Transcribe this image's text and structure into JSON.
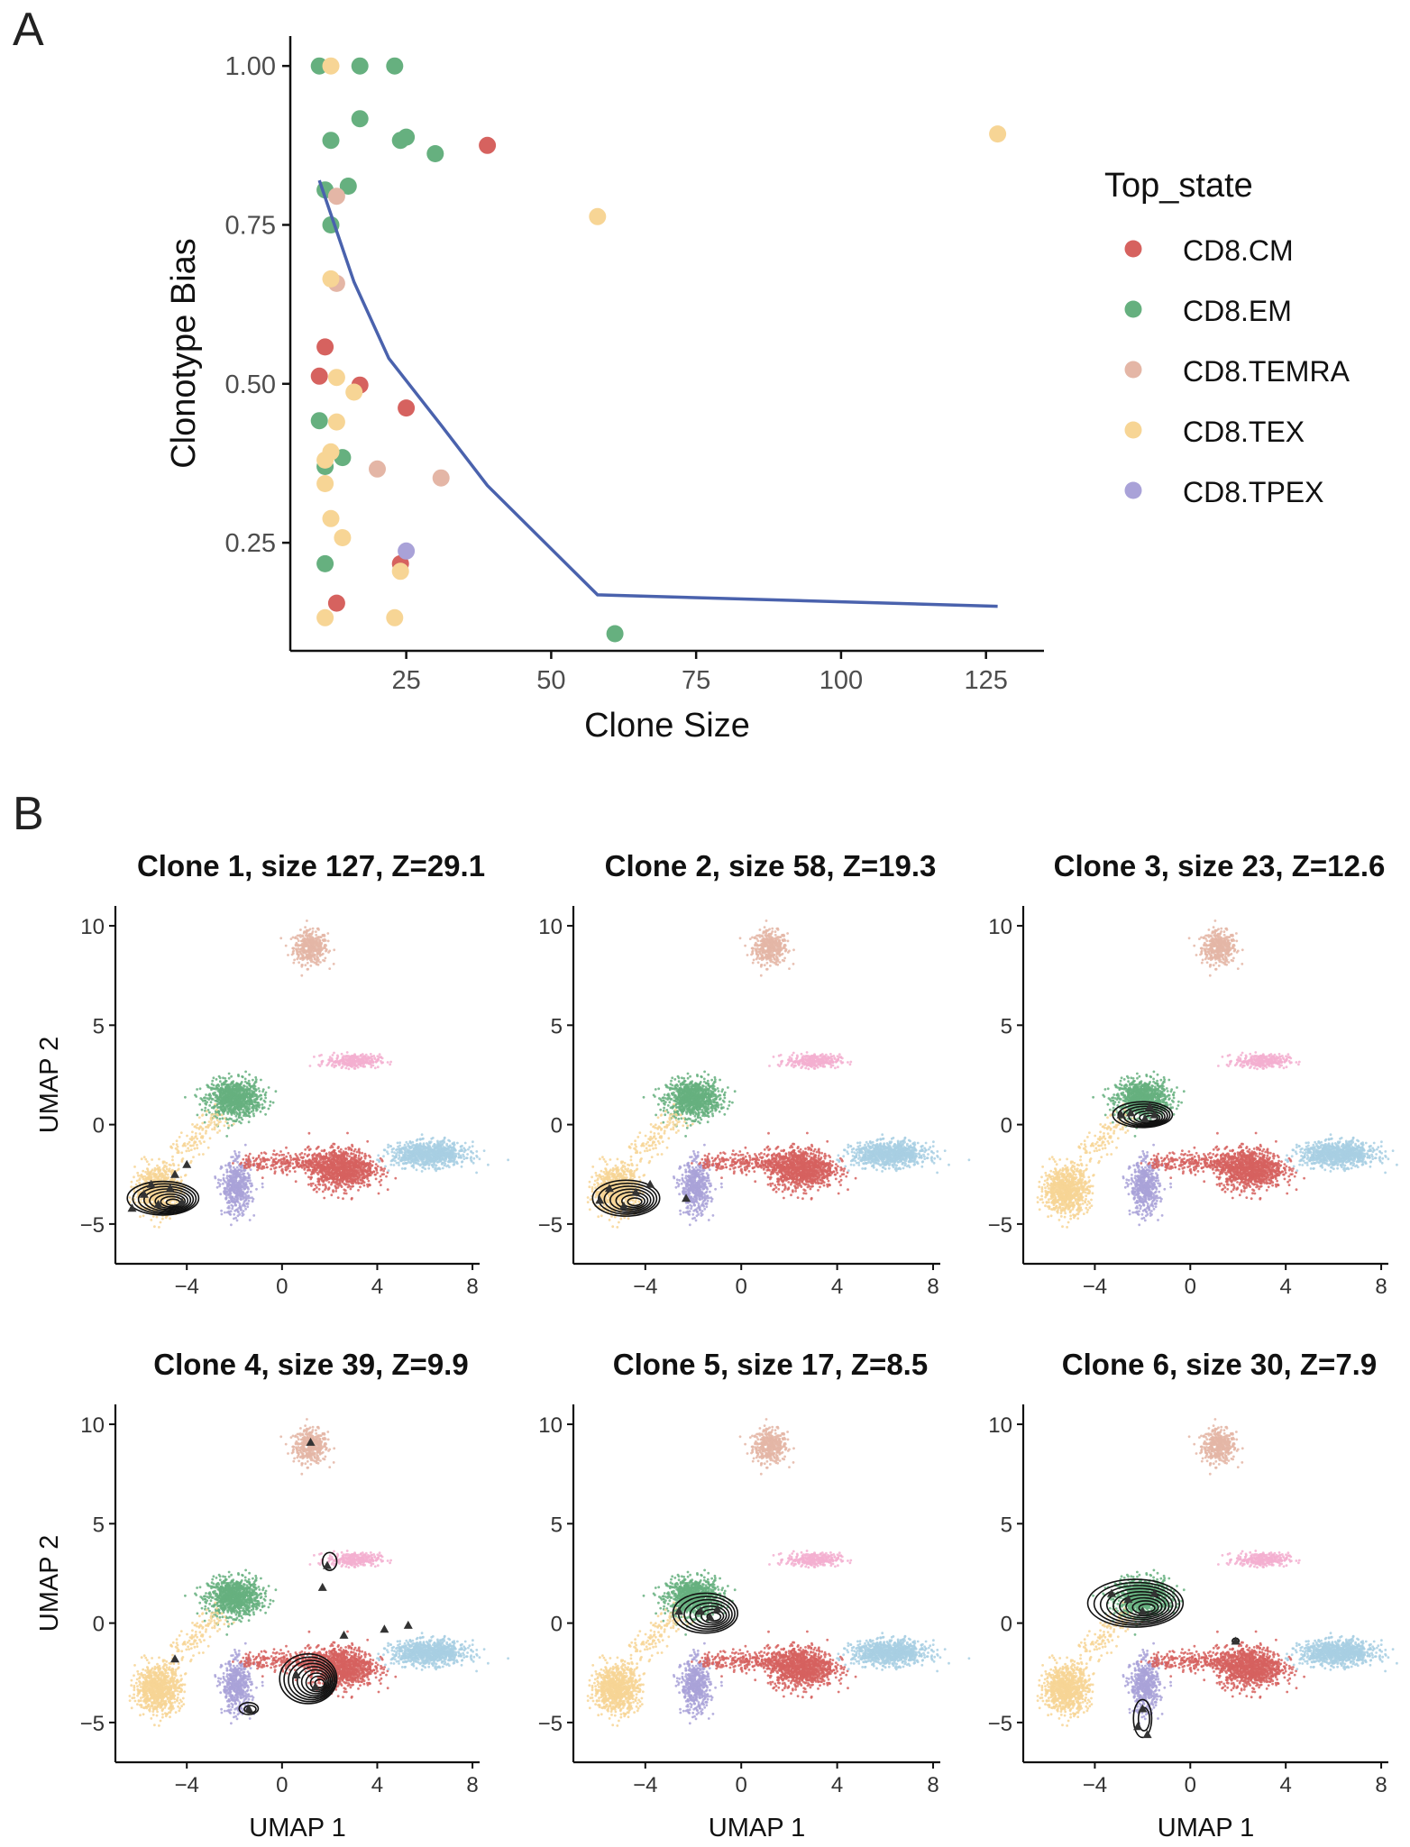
{
  "panel_labels": [
    "A",
    "B"
  ],
  "colors": {
    "CD8.CM": "#d6625f",
    "CD8.EM": "#66b07f",
    "CD8.TEMRA": "#e4b6a6",
    "CD8.TEX": "#f7d595",
    "CD8.TPEX": "#a9a2d8",
    "CD8.TPEX_high": "#f3afd0",
    "CD8.Tnaive": "#a8cfe3",
    "trend": "#4a62ad",
    "contour": "#111111"
  },
  "chart_data": [
    {
      "type": "scatter",
      "xlabel": "Clone Size",
      "ylabel": "Clonotype Bias",
      "xlim": [
        5,
        135
      ],
      "ylim": [
        0.08,
        1.03
      ],
      "xticks": [
        25,
        50,
        75,
        100,
        125
      ],
      "yticks": [
        "0.25",
        "0.50",
        "0.75",
        "1.00"
      ],
      "legend": {
        "title": "Top_state",
        "position": "right",
        "items": [
          "CD8.CM",
          "CD8.EM",
          "CD8.TEMRA",
          "CD8.TEX",
          "CD8.TPEX"
        ]
      },
      "series": [
        {
          "name": "CD8.CM",
          "points": [
            [
              39,
              0.875
            ],
            [
              11,
              0.558
            ],
            [
              10,
              0.512
            ],
            [
              17,
              0.498
            ],
            [
              25,
              0.462
            ],
            [
              24,
              0.217
            ],
            [
              13,
              0.155
            ]
          ]
        },
        {
          "name": "CD8.EM",
          "points": [
            [
              10,
              1.0
            ],
            [
              17,
              1.0
            ],
            [
              23,
              1.0
            ],
            [
              17,
              0.917
            ],
            [
              25,
              0.888
            ],
            [
              24,
              0.883
            ],
            [
              12,
              0.883
            ],
            [
              30,
              0.862
            ],
            [
              15,
              0.811
            ],
            [
              11,
              0.805
            ],
            [
              12,
              0.75
            ],
            [
              10,
              0.442
            ],
            [
              14,
              0.384
            ],
            [
              11,
              0.37
            ],
            [
              11,
              0.217
            ],
            [
              61,
              0.107
            ]
          ]
        },
        {
          "name": "CD8.TEMRA",
          "points": [
            [
              13,
              0.795
            ],
            [
              13,
              0.658
            ],
            [
              20,
              0.366
            ],
            [
              31,
              0.352
            ]
          ]
        },
        {
          "name": "CD8.TEX",
          "points": [
            [
              12,
              1.0
            ],
            [
              127,
              0.893
            ],
            [
              58,
              0.763
            ],
            [
              12,
              0.665
            ],
            [
              13,
              0.51
            ],
            [
              16,
              0.487
            ],
            [
              13,
              0.44
            ],
            [
              12,
              0.393
            ],
            [
              11,
              0.38
            ],
            [
              11,
              0.343
            ],
            [
              12,
              0.288
            ],
            [
              14,
              0.258
            ],
            [
              24,
              0.205
            ],
            [
              11,
              0.132
            ],
            [
              23,
              0.132
            ]
          ]
        },
        {
          "name": "CD8.TPEX",
          "points": [
            [
              25,
              0.237
            ]
          ]
        }
      ],
      "trend_line": {
        "x": [
          10,
          16,
          22,
          31,
          39,
          58,
          127
        ],
        "y": [
          0.82,
          0.66,
          0.54,
          0.435,
          0.34,
          0.168,
          0.15
        ]
      }
    },
    {
      "type": "scatter",
      "subplot_titles": [
        "Clone 1, size 127, Z=29.1",
        "Clone 2, size 58, Z=19.3",
        "Clone 3, size 23, Z=12.6",
        "Clone 4, size 39, Z=9.9",
        "Clone 5, size 17, Z=8.5",
        "Clone 6, size 30, Z=7.9"
      ],
      "xlabel": "UMAP 1",
      "ylabel": "UMAP 2",
      "xlim": [
        -7,
        8.3
      ],
      "ylim": [
        -7,
        11
      ],
      "xticks": [
        "−4",
        "0",
        "4",
        "8"
      ],
      "yticks": [
        "−5",
        "0",
        "5",
        "10"
      ],
      "clusters": [
        {
          "name": "CD8.TEMRA",
          "center": [
            1.2,
            8.9
          ],
          "spread": [
            0.65,
            0.75
          ],
          "n": 420
        },
        {
          "name": "CD8.EM",
          "center": [
            -2.0,
            1.3
          ],
          "spread": [
            1.0,
            0.85
          ],
          "n": 950
        },
        {
          "name": "CD8.TPEX_high",
          "center": [
            3.0,
            3.2
          ],
          "spread": [
            1.0,
            0.3
          ],
          "n": 300
        },
        {
          "name": "CD8.CM",
          "center": [
            2.5,
            -2.2
          ],
          "spread": [
            1.25,
            0.9
          ],
          "n": 1050
        },
        {
          "name": "CD8.Tnaive",
          "center": [
            6.2,
            -1.5
          ],
          "spread": [
            1.4,
            0.55
          ],
          "n": 900
        },
        {
          "name": "CD8.TEX",
          "center": [
            -5.2,
            -3.3
          ],
          "spread": [
            0.85,
            1.0
          ],
          "n": 850
        },
        {
          "name": "CD8.TPEX",
          "center": [
            -1.9,
            -3.2
          ],
          "spread": [
            0.55,
            1.2
          ],
          "n": 500
        }
      ],
      "clone_density": [
        [
          {
            "center": [
              -5.0,
              -3.7
            ],
            "axes": [
              1.5,
              0.85
            ],
            "rings": 8
          }
        ],
        [
          {
            "center": [
              -4.8,
              -3.7
            ],
            "axes": [
              1.4,
              0.9
            ],
            "rings": 7
          }
        ],
        [
          {
            "center": [
              -2.0,
              0.5
            ],
            "axes": [
              1.25,
              0.65
            ],
            "rings": 7
          }
        ],
        [
          {
            "center": [
              1.1,
              -2.8
            ],
            "axes": [
              1.2,
              1.25
            ],
            "rings": 9
          },
          {
            "center": [
              2.0,
              3.1
            ],
            "axes": [
              0.3,
              0.45
            ],
            "rings": 1
          },
          {
            "center": [
              -1.4,
              -4.3
            ],
            "axes": [
              0.4,
              0.3
            ],
            "rings": 2
          }
        ],
        [
          {
            "center": [
              -1.5,
              0.5
            ],
            "axes": [
              1.35,
              1.0
            ],
            "rings": 7
          }
        ],
        [
          {
            "center": [
              -2.3,
              1.0
            ],
            "axes": [
              2.0,
              1.2
            ],
            "rings": 9
          },
          {
            "center": [
              -2.0,
              -4.8
            ],
            "axes": [
              0.38,
              0.95
            ],
            "rings": 2
          },
          {
            "center": [
              1.9,
              -0.9
            ],
            "axes": [
              0.14,
              0.14
            ],
            "rings": 1
          }
        ]
      ],
      "clone_members": [
        [
          [
            -5.8,
            -3.5
          ],
          [
            -5.2,
            -4.0
          ],
          [
            -4.7,
            -3.2
          ],
          [
            -4.2,
            -3.9
          ],
          [
            -5.5,
            -3.0
          ],
          [
            -4.5,
            -2.5
          ],
          [
            -4.0,
            -2.0
          ],
          [
            -6.3,
            -4.2
          ]
        ],
        [
          [
            -5.5,
            -3.2
          ],
          [
            -4.9,
            -4.1
          ],
          [
            -4.4,
            -3.4
          ],
          [
            -3.8,
            -3.0
          ],
          [
            -2.3,
            -3.7
          ],
          [
            -5.9,
            -3.8
          ]
        ],
        [
          [
            -2.5,
            0.6
          ],
          [
            -1.9,
            0.3
          ],
          [
            -1.5,
            0.5
          ],
          [
            -2.9,
            0.5
          ],
          [
            -1.7,
            0.9
          ]
        ],
        [
          [
            1.2,
            9.1
          ],
          [
            1.9,
            2.9
          ],
          [
            1.7,
            1.8
          ],
          [
            0.6,
            -2.6
          ],
          [
            1.4,
            -3.2
          ],
          [
            2.6,
            -0.6
          ],
          [
            4.3,
            -0.3
          ],
          [
            5.3,
            -0.1
          ],
          [
            -4.5,
            -1.8
          ],
          [
            -1.4,
            -4.3
          ]
        ],
        [
          [
            -1.7,
            0.6
          ],
          [
            -1.3,
            0.3
          ],
          [
            -2.6,
            0.6
          ],
          [
            -1.0,
            0.7
          ]
        ],
        [
          [
            -2.6,
            1.2
          ],
          [
            -2.0,
            0.6
          ],
          [
            -1.5,
            1.5
          ],
          [
            -3.3,
            1.5
          ],
          [
            -2.0,
            -4.3
          ],
          [
            -2.2,
            -5.2
          ],
          [
            -1.8,
            -5.6
          ],
          [
            1.9,
            -0.9
          ]
        ]
      ]
    }
  ]
}
